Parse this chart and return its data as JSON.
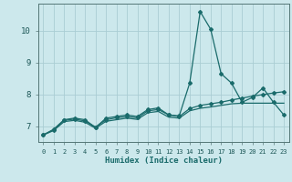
{
  "xlabel": "Humidex (Indice chaleur)",
  "bg_color": "#cce8ec",
  "grid_color": "#aacdd4",
  "line_color": "#1a6b6b",
  "xlim": [
    -0.5,
    23.5
  ],
  "ylim": [
    6.5,
    10.85
  ],
  "xticks": [
    0,
    1,
    2,
    3,
    4,
    5,
    6,
    7,
    8,
    9,
    10,
    11,
    12,
    13,
    14,
    15,
    16,
    17,
    18,
    19,
    20,
    21,
    22,
    23
  ],
  "yticks": [
    7,
    8,
    9,
    10
  ],
  "series1_x": [
    0,
    1,
    2,
    3,
    4,
    5,
    6,
    7,
    8,
    9,
    10,
    11,
    12,
    13,
    14,
    15,
    16,
    17,
    18,
    19,
    20,
    21,
    22,
    23
  ],
  "series1_y": [
    6.72,
    6.9,
    7.2,
    7.25,
    7.2,
    6.95,
    7.25,
    7.3,
    7.35,
    7.3,
    7.52,
    7.57,
    7.35,
    7.32,
    8.35,
    10.6,
    10.05,
    8.65,
    8.35,
    7.75,
    7.9,
    8.2,
    7.75,
    7.35
  ],
  "series2_x": [
    0,
    1,
    2,
    3,
    4,
    5,
    6,
    7,
    8,
    9,
    10,
    11,
    12,
    13,
    14,
    15,
    16,
    17,
    18,
    19,
    20,
    21,
    22,
    23
  ],
  "series2_y": [
    6.72,
    6.88,
    7.18,
    7.22,
    7.16,
    6.97,
    7.2,
    7.26,
    7.3,
    7.26,
    7.48,
    7.52,
    7.35,
    7.3,
    7.55,
    7.65,
    7.7,
    7.75,
    7.82,
    7.88,
    7.94,
    7.99,
    8.04,
    8.08
  ],
  "series3_x": [
    0,
    1,
    2,
    3,
    4,
    5,
    6,
    7,
    8,
    9,
    10,
    11,
    12,
    13,
    14,
    15,
    16,
    17,
    18,
    19,
    20,
    21,
    22,
    23
  ],
  "series3_y": [
    6.72,
    6.86,
    7.14,
    7.18,
    7.12,
    6.93,
    7.15,
    7.2,
    7.25,
    7.21,
    7.42,
    7.46,
    7.28,
    7.25,
    7.48,
    7.56,
    7.6,
    7.65,
    7.7,
    7.72,
    7.72,
    7.72,
    7.72,
    7.72
  ]
}
